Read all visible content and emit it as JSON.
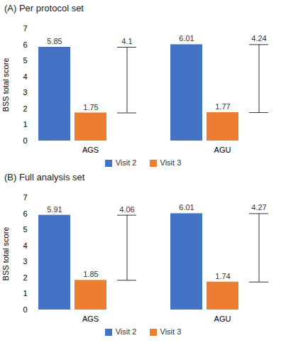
{
  "chart_data": [
    {
      "type": "bar",
      "title": "(A) Per protocol set",
      "categories": [
        "AGS",
        "AGU"
      ],
      "series": [
        {
          "name": "Visit 2",
          "color": "#4472c4",
          "values": [
            5.85,
            6.01
          ]
        },
        {
          "name": "Visit 3",
          "color": "#ed7d31",
          "values": [
            1.75,
            1.77
          ]
        }
      ],
      "differences": [
        4.1,
        4.24
      ],
      "y_label": "BSS total score",
      "ylim": [
        0,
        7
      ],
      "yticks": [
        0,
        1,
        2,
        3,
        4,
        5,
        6,
        7
      ],
      "grid": false,
      "data_labels": true,
      "legend": "bottom"
    },
    {
      "type": "bar",
      "title": "(B) Full analysis set",
      "categories": [
        "AGS",
        "AGU"
      ],
      "series": [
        {
          "name": "Visit 2",
          "color": "#4472c4",
          "values": [
            5.91,
            6.01
          ]
        },
        {
          "name": "Visit 3",
          "color": "#ed7d31",
          "values": [
            1.85,
            1.74
          ]
        }
      ],
      "differences": [
        4.06,
        4.27
      ],
      "y_label": "BSS total score",
      "ylim": [
        0,
        7
      ],
      "yticks": [
        0,
        1,
        2,
        3,
        4,
        5,
        6,
        7
      ],
      "grid": false,
      "data_labels": true,
      "legend": "bottom"
    }
  ]
}
